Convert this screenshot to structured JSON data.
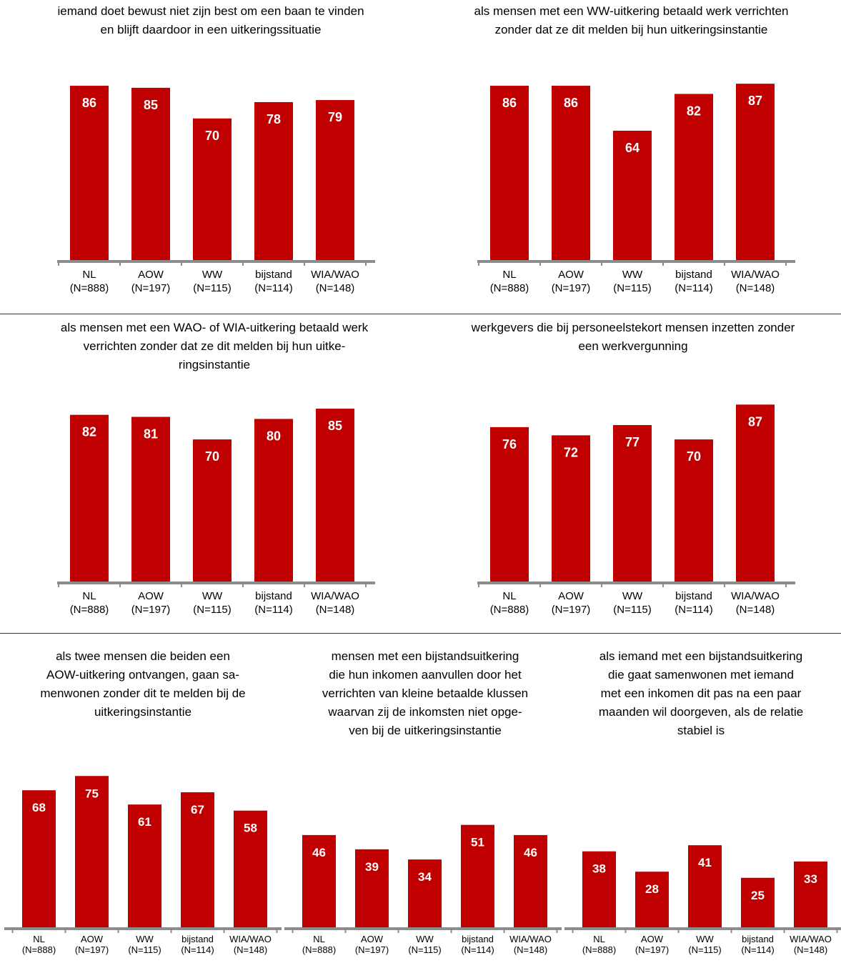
{
  "categories": [
    "NL",
    "AOW",
    "WW",
    "bijstand",
    "WIA/WAO"
  ],
  "category_n": [
    "(N=888)",
    "(N=197)",
    "(N=115)",
    "(N=114)",
    "(N=148)"
  ],
  "bar_color": "#c00000",
  "axis_color": "#8c8c8c",
  "chart_data": [
    {
      "type": "bar",
      "title": "iemand doet bewust niet zijn best om een baan te vinden\nen blijft daardoor in een uitkeringssituatie",
      "categories": [
        "NL (N=888)",
        "AOW (N=197)",
        "WW (N=115)",
        "bijstand (N=114)",
        "WIA/WAO (N=148)"
      ],
      "values": [
        86,
        85,
        70,
        78,
        79
      ],
      "xlabel": "",
      "ylabel": "",
      "grid": false
    },
    {
      "type": "bar",
      "title": "als mensen met een WW-uitkering betaald werk verrichten\nzonder dat ze dit melden bij hun uitkeringsinstantie",
      "categories": [
        "NL (N=888)",
        "AOW (N=197)",
        "WW (N=115)",
        "bijstand (N=114)",
        "WIA/WAO (N=148)"
      ],
      "values": [
        86,
        86,
        64,
        82,
        87
      ],
      "xlabel": "",
      "ylabel": "",
      "grid": false
    },
    {
      "type": "bar",
      "title": "als mensen met een WAO- of WIA-uitkering betaald werk\nverrichten zonder dat ze dit melden bij hun                    uitke-\nringsinstantie",
      "categories": [
        "NL (N=888)",
        "AOW (N=197)",
        "WW (N=115)",
        "bijstand (N=114)",
        "WIA/WAO (N=148)"
      ],
      "values": [
        82,
        81,
        70,
        80,
        85
      ],
      "xlabel": "",
      "ylabel": "",
      "grid": false
    },
    {
      "type": "bar",
      "title": "werkgevers die bij personeelstekort mensen inzetten zonder\neen werkvergunning",
      "categories": [
        "NL (N=888)",
        "AOW (N=197)",
        "WW (N=115)",
        "bijstand (N=114)",
        "WIA/WAO (N=148)"
      ],
      "values": [
        76,
        72,
        77,
        70,
        87
      ],
      "xlabel": "",
      "ylabel": "",
      "grid": false
    },
    {
      "type": "bar",
      "title": "als twee mensen die beiden een\nAOW-uitkering ontvangen, gaan sa-\nmenwonen zonder dit te melden bij de\nuitkeringsinstantie",
      "categories": [
        "NL (N=888)",
        "AOW (N=197)",
        "WW (N=115)",
        "bijstand (N=114)",
        "WIA/WAO (N=148)"
      ],
      "values": [
        68,
        75,
        61,
        67,
        58
      ],
      "xlabel": "",
      "ylabel": "",
      "grid": false
    },
    {
      "type": "bar",
      "title": "mensen met een bijstandsuitkering\ndie hun inkomen aanvullen door het\nverrichten van kleine betaalde klussen\nwaarvan zij de inkomsten niet opge-\nven bij de uitkeringsinstantie",
      "categories": [
        "NL (N=888)",
        "AOW (N=197)",
        "WW (N=115)",
        "bijstand (N=114)",
        "WIA/WAO (N=148)"
      ],
      "values": [
        46,
        39,
        34,
        51,
        46
      ],
      "xlabel": "",
      "ylabel": "",
      "grid": false
    },
    {
      "type": "bar",
      "title": "als iemand met een bijstandsuitkering\ndie gaat samenwonen met iemand\nmet een inkomen dit pas na een paar\nmaanden wil doorgeven, als de relatie\nstabiel is",
      "categories": [
        "NL (N=888)",
        "AOW (N=197)",
        "WW (N=115)",
        "bijstand (N=114)",
        "WIA/WAO (N=148)"
      ],
      "values": [
        38,
        28,
        41,
        25,
        33
      ],
      "xlabel": "",
      "ylabel": "",
      "grid": false
    }
  ]
}
